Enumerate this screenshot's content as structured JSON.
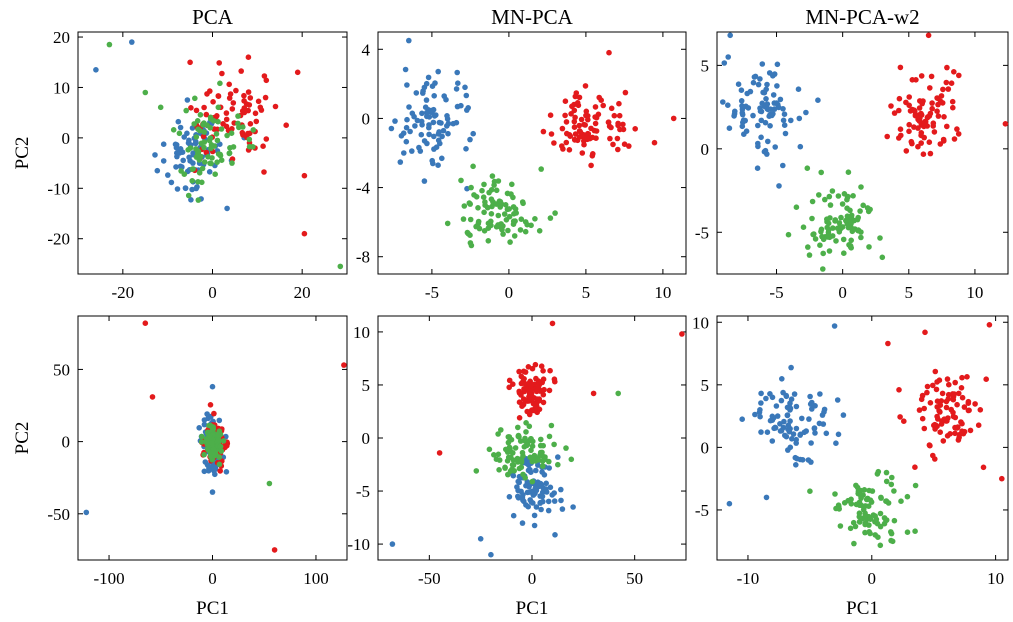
{
  "colors": {
    "blue": "#3a78b9",
    "red": "#e31a1c",
    "green": "#4daf4a"
  },
  "chart_data": [
    {
      "type": "scatter",
      "title": "PCA",
      "xlabel": "",
      "ylabel": "PC2",
      "xlim": [
        -30,
        30
      ],
      "ylim": [
        -27,
        21
      ],
      "xticks": [
        {
          "v": -20,
          "label": "-20"
        },
        {
          "v": 0,
          "label": "0"
        },
        {
          "v": 20,
          "label": "20"
        }
      ],
      "yticks": [
        {
          "v": 20,
          "label": "20"
        },
        {
          "v": 10,
          "label": "10"
        },
        {
          "v": 0,
          "label": "0"
        },
        {
          "v": -10,
          "label": "-10"
        },
        {
          "v": -20,
          "label": "-20"
        }
      ],
      "clusters": [
        {
          "color": "blue",
          "cx": -4,
          "cy": -3,
          "sx": 4.5,
          "sy": 4,
          "n": 80,
          "seed": 11
        },
        {
          "color": "red",
          "cx": 4,
          "cy": 3,
          "sx": 4.5,
          "sy": 4.5,
          "n": 80,
          "seed": 12
        },
        {
          "color": "green",
          "cx": 0,
          "cy": -1,
          "sx": 4.5,
          "sy": 4,
          "n": 80,
          "seed": 13
        }
      ],
      "outliers": [
        {
          "x": -26,
          "y": 13.5,
          "c": "blue"
        },
        {
          "x": -18,
          "y": 19,
          "c": "blue"
        },
        {
          "x": -23,
          "y": 18.5,
          "c": "green"
        },
        {
          "x": 19,
          "y": 13,
          "c": "red"
        },
        {
          "x": 20.5,
          "y": -7.5,
          "c": "red"
        },
        {
          "x": 20.5,
          "y": -19,
          "c": "red"
        },
        {
          "x": 28.5,
          "y": -25.5,
          "c": "green"
        },
        {
          "x": -15,
          "y": 9,
          "c": "green"
        },
        {
          "x": 8,
          "y": 16,
          "c": "red"
        },
        {
          "x": -5,
          "y": 15,
          "c": "red"
        },
        {
          "x": -6,
          "y": -10,
          "c": "blue"
        }
      ]
    },
    {
      "type": "scatter",
      "title": "MN-PCA",
      "xlabel": "",
      "ylabel": "",
      "xlim": [
        -8.5,
        11.5
      ],
      "ylim": [
        -9,
        5
      ],
      "xticks": [
        {
          "v": -5,
          "label": "-5"
        },
        {
          "v": 0,
          "label": "0"
        },
        {
          "v": 5,
          "label": "5"
        },
        {
          "v": 10,
          "label": "10"
        }
      ],
      "yticks": [
        {
          "v": 4,
          "label": "4"
        },
        {
          "v": 0,
          "label": "0"
        },
        {
          "v": -4,
          "label": "-4"
        },
        {
          "v": -8,
          "label": "-8"
        }
      ],
      "clusters": [
        {
          "color": "blue",
          "cx": -5.2,
          "cy": 0,
          "sx": 1.3,
          "sy": 1.3,
          "n": 90,
          "seed": 21
        },
        {
          "color": "red",
          "cx": 5.3,
          "cy": -0.3,
          "sx": 1.3,
          "sy": 1.0,
          "n": 90,
          "seed": 22
        },
        {
          "color": "green",
          "cx": -0.7,
          "cy": -5.5,
          "sx": 1.3,
          "sy": 1.0,
          "n": 90,
          "seed": 23
        }
      ],
      "outliers": [
        {
          "x": -6.5,
          "y": 4.5,
          "c": "blue"
        },
        {
          "x": 10.7,
          "y": 0,
          "c": "red"
        },
        {
          "x": 6.5,
          "y": 3.8,
          "c": "red"
        },
        {
          "x": -2.5,
          "y": -7.2,
          "c": "green"
        },
        {
          "x": 2,
          "y": -6.5,
          "c": "green"
        },
        {
          "x": 8.2,
          "y": -0.6,
          "c": "red"
        }
      ]
    },
    {
      "type": "scatter",
      "title": "MN-PCA-w2",
      "xlabel": "",
      "ylabel": "",
      "xlim": [
        -9.5,
        12.5
      ],
      "ylim": [
        -7.5,
        7
      ],
      "xticks": [
        {
          "v": -5,
          "label": "-5"
        },
        {
          "v": 0,
          "label": "0"
        },
        {
          "v": 5,
          "label": "5"
        },
        {
          "v": 10,
          "label": "10"
        }
      ],
      "yticks": [
        {
          "v": 5,
          "label": "5"
        },
        {
          "v": 0,
          "label": "0"
        },
        {
          "v": -5,
          "label": "-5"
        }
      ],
      "clusters": [
        {
          "color": "blue",
          "cx": -6,
          "cy": 2.2,
          "sx": 1.4,
          "sy": 1.4,
          "n": 90,
          "seed": 31
        },
        {
          "color": "red",
          "cx": 6.7,
          "cy": 2.2,
          "sx": 1.3,
          "sy": 1.1,
          "n": 90,
          "seed": 32
        },
        {
          "color": "green",
          "cx": -0.2,
          "cy": -4.5,
          "sx": 1.3,
          "sy": 1.1,
          "n": 90,
          "seed": 33
        }
      ],
      "outliers": [
        {
          "x": -8.5,
          "y": 6.8,
          "c": "blue"
        },
        {
          "x": 6.5,
          "y": 6.8,
          "c": "red"
        },
        {
          "x": 12.3,
          "y": 1.5,
          "c": "red"
        },
        {
          "x": -1.5,
          "y": -7.2,
          "c": "green"
        },
        {
          "x": 3,
          "y": -6.5,
          "c": "green"
        },
        {
          "x": -3.5,
          "y": -3.5,
          "c": "green"
        }
      ]
    },
    {
      "type": "scatter",
      "title": "",
      "xlabel": "PC1",
      "ylabel": "PC2",
      "xlim": [
        -130,
        130
      ],
      "ylim": [
        -82,
        87
      ],
      "xticks": [
        {
          "v": -100,
          "label": "-100"
        },
        {
          "v": 0,
          "label": "0"
        },
        {
          "v": 100,
          "label": "100"
        }
      ],
      "yticks": [
        {
          "v": 50,
          "label": "50"
        },
        {
          "v": 0,
          "label": "0"
        },
        {
          "v": -50,
          "label": "-50"
        }
      ],
      "clusters": [
        {
          "color": "blue",
          "cx": 0,
          "cy": -2,
          "sx": 5,
          "sy": 9,
          "n": 80,
          "seed": 41
        },
        {
          "color": "red",
          "cx": 2,
          "cy": 0,
          "sx": 5,
          "sy": 8,
          "n": 80,
          "seed": 42
        },
        {
          "color": "green",
          "cx": 0,
          "cy": 0,
          "sx": 3.5,
          "sy": 5,
          "n": 90,
          "seed": 43
        }
      ],
      "outliers": [
        {
          "x": -65,
          "y": 82,
          "c": "red"
        },
        {
          "x": -58,
          "y": 31,
          "c": "red"
        },
        {
          "x": 127,
          "y": 53,
          "c": "red"
        },
        {
          "x": 60,
          "y": -75,
          "c": "red"
        },
        {
          "x": -122,
          "y": -49,
          "c": "blue"
        },
        {
          "x": 55,
          "y": -29,
          "c": "green"
        },
        {
          "x": 0,
          "y": 38,
          "c": "blue"
        },
        {
          "x": 0,
          "y": -35,
          "c": "blue"
        }
      ]
    },
    {
      "type": "scatter",
      "title": "",
      "xlabel": "PC1",
      "ylabel": "",
      "xlim": [
        -75,
        75
      ],
      "ylim": [
        -11.5,
        11.5
      ],
      "xticks": [
        {
          "v": -50,
          "label": "-50"
        },
        {
          "v": 0,
          "label": "0"
        },
        {
          "v": 50,
          "label": "50"
        }
      ],
      "yticks": [
        {
          "v": 10,
          "label": "10"
        },
        {
          "v": 5,
          "label": "5"
        },
        {
          "v": 0,
          "label": "0"
        },
        {
          "v": -5,
          "label": "-5"
        },
        {
          "v": -10,
          "label": "-10"
        }
      ],
      "clusters": [
        {
          "color": "red",
          "cx": 0,
          "cy": 4.5,
          "sx": 4.5,
          "sy": 1.1,
          "n": 90,
          "seed": 51
        },
        {
          "color": "blue",
          "cx": 0,
          "cy": -4.3,
          "sx": 6,
          "sy": 1.4,
          "n": 90,
          "seed": 52
        },
        {
          "color": "green",
          "cx": -2,
          "cy": -1.5,
          "sx": 7,
          "sy": 1.3,
          "n": 90,
          "seed": 53
        }
      ],
      "outliers": [
        {
          "x": 73,
          "y": 9.8,
          "c": "red"
        },
        {
          "x": 10,
          "y": 10.8,
          "c": "red"
        },
        {
          "x": -45,
          "y": -1.4,
          "c": "red"
        },
        {
          "x": -68,
          "y": -10,
          "c": "blue"
        },
        {
          "x": -25,
          "y": -9.5,
          "c": "blue"
        },
        {
          "x": -20,
          "y": -11,
          "c": "blue"
        },
        {
          "x": 42,
          "y": 4.2,
          "c": "green"
        },
        {
          "x": 30,
          "y": 4.2,
          "c": "red"
        },
        {
          "x": 20,
          "y": -6.5,
          "c": "blue"
        }
      ]
    },
    {
      "type": "scatter",
      "title": "",
      "xlabel": "PC1",
      "ylabel": "",
      "xlim": [
        -12.5,
        11
      ],
      "ylim": [
        -9,
        10.5
      ],
      "xticks": [
        {
          "v": -10,
          "label": "-10"
        },
        {
          "v": 0,
          "label": "0"
        },
        {
          "v": 10,
          "label": "10"
        }
      ],
      "yticks": [
        {
          "v": 10,
          "label": "10"
        },
        {
          "v": 5,
          "label": "5"
        },
        {
          "v": 0,
          "label": "0"
        },
        {
          "v": -5,
          "label": "-5"
        }
      ],
      "clusters": [
        {
          "color": "blue",
          "cx": -6.2,
          "cy": 2.2,
          "sx": 1.7,
          "sy": 1.5,
          "n": 90,
          "seed": 61
        },
        {
          "color": "red",
          "cx": 6,
          "cy": 2.5,
          "sx": 1.5,
          "sy": 1.7,
          "n": 90,
          "seed": 62
        },
        {
          "color": "green",
          "cx": 0,
          "cy": -5,
          "sx": 1.5,
          "sy": 1.3,
          "n": 90,
          "seed": 63
        }
      ],
      "outliers": [
        {
          "x": -3,
          "y": 9.7,
          "c": "blue"
        },
        {
          "x": 9.5,
          "y": 9.8,
          "c": "red"
        },
        {
          "x": 4.3,
          "y": 9.2,
          "c": "red"
        },
        {
          "x": -11.5,
          "y": -4.5,
          "c": "blue"
        },
        {
          "x": -8.5,
          "y": -4,
          "c": "blue"
        },
        {
          "x": 1.3,
          "y": 8.3,
          "c": "red"
        },
        {
          "x": 10.5,
          "y": -2.5,
          "c": "red"
        },
        {
          "x": 2.2,
          "y": 4.6,
          "c": "red"
        },
        {
          "x": -5,
          "y": -3.5,
          "c": "green"
        }
      ]
    }
  ]
}
